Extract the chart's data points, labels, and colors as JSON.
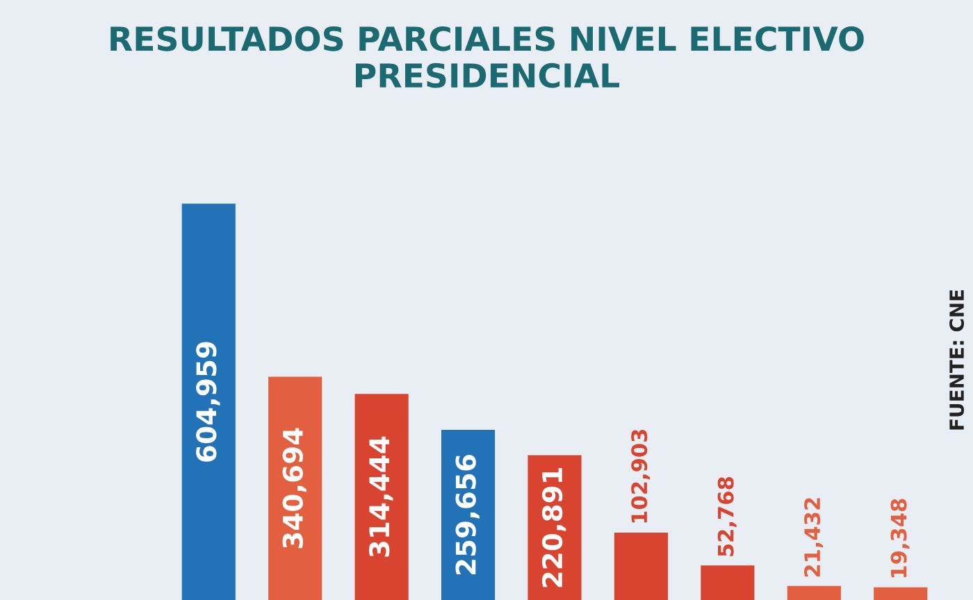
{
  "chart_data": {
    "type": "bar",
    "title": "RESULTADOS PARCIALES NIVEL ELECTIVO PRESIDENCIAL",
    "categories": [
      null,
      null,
      null,
      null,
      null,
      null,
      null,
      null,
      null
    ],
    "value_labels": [
      "604,959",
      "340,694",
      "314,444",
      "259,656",
      "220,891",
      "102,903",
      "52,768",
      "21,432",
      "19,348"
    ],
    "values": [
      604959,
      340694,
      314444,
      259656,
      220891,
      102903,
      52768,
      21432,
      19348
    ],
    "colors": [
      "#2272b8",
      "#e2603f",
      "#d8442f",
      "#2272b8",
      "#d8442f",
      "#d8442f",
      "#d8442f",
      "#e2603f",
      "#e2603f"
    ],
    "annotations": [
      "FUENTE: CNE"
    ]
  }
}
